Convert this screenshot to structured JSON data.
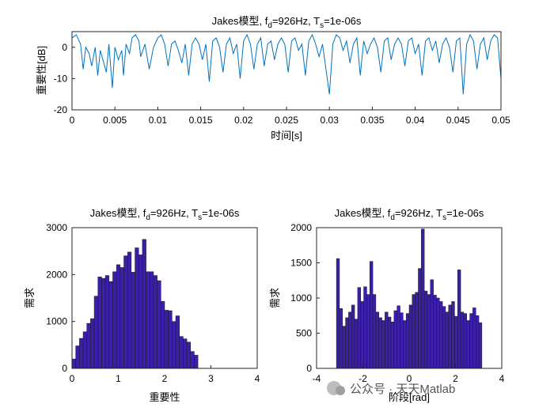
{
  "chart_data": [
    {
      "type": "line",
      "title_main": "Jakes模型, f",
      "title_sub1": "d",
      "title_mid": "=926Hz, T",
      "title_sub2": "s",
      "title_end": "=1e-06s",
      "xlabel": "时间[s]",
      "ylabel": "重要性[dB]",
      "xlim": [
        0,
        0.05
      ],
      "ylim": [
        -20,
        5
      ],
      "xticks": [
        0,
        0.005,
        0.01,
        0.015,
        0.02,
        0.025,
        0.03,
        0.035,
        0.04,
        0.045,
        0.05
      ],
      "xtick_labels": [
        "0",
        "0.005",
        "0.01",
        "0.015",
        "0.02",
        "0.025",
        "0.03",
        "0.035",
        "0.04",
        "0.045",
        "0.05"
      ],
      "yticks": [
        -20,
        -10,
        0
      ],
      "ytick_labels": [
        "-20",
        "-10",
        "0"
      ],
      "grid": false,
      "color": "#0072BD",
      "series": [
        {
          "x": [
            0.0,
            0.0005,
            0.001,
            0.0013,
            0.0016,
            0.002,
            0.0023,
            0.0027,
            0.003,
            0.0033,
            0.0036,
            0.004,
            0.0043,
            0.0047,
            0.005,
            0.0054,
            0.0058,
            0.006,
            0.0063,
            0.0067,
            0.007,
            0.0074,
            0.0078,
            0.008,
            0.0085,
            0.009,
            0.0095,
            0.01,
            0.0104,
            0.0108,
            0.0112,
            0.0116,
            0.012,
            0.0124,
            0.0128,
            0.0132,
            0.0136,
            0.014,
            0.0144,
            0.0148,
            0.0152,
            0.0156,
            0.016,
            0.0164,
            0.0168,
            0.0172,
            0.0176,
            0.018,
            0.0184,
            0.0188,
            0.0192,
            0.0196,
            0.02,
            0.0204,
            0.0208,
            0.0212,
            0.0216,
            0.022,
            0.0224,
            0.0228,
            0.0232,
            0.0236,
            0.024,
            0.0244,
            0.0248,
            0.0252,
            0.0256,
            0.026,
            0.0264,
            0.0268,
            0.0272,
            0.0276,
            0.028,
            0.0284,
            0.0288,
            0.0292,
            0.0296,
            0.03,
            0.0304,
            0.0308,
            0.0312,
            0.0316,
            0.032,
            0.0324,
            0.0328,
            0.0332,
            0.0336,
            0.034,
            0.0344,
            0.0348,
            0.0352,
            0.0356,
            0.036,
            0.0364,
            0.0368,
            0.0372,
            0.0376,
            0.038,
            0.0384,
            0.0388,
            0.0392,
            0.0396,
            0.04,
            0.0404,
            0.0408,
            0.0412,
            0.0416,
            0.042,
            0.0424,
            0.0428,
            0.0432,
            0.0436,
            0.044,
            0.0444,
            0.0448,
            0.0452,
            0.0456,
            0.046,
            0.0464,
            0.0468,
            0.0472,
            0.0476,
            0.048,
            0.0484,
            0.0488,
            0.0492,
            0.0496,
            0.05
          ],
          "y": [
            3,
            4,
            1,
            -7,
            0,
            -2,
            -6,
            0,
            -9,
            -1,
            -4,
            -8,
            1,
            -13,
            0,
            -4,
            -1,
            -9,
            1,
            -2,
            3,
            4,
            2,
            -3,
            1,
            -7,
            0,
            3,
            4,
            1,
            -6,
            1,
            2,
            -1,
            -5,
            1,
            -9,
            1,
            3,
            1,
            -4,
            1,
            -11,
            2,
            3,
            0,
            -8,
            1,
            3,
            -2,
            1,
            -10,
            2,
            4,
            1,
            -7,
            1,
            3,
            -6,
            1,
            2,
            -4,
            1,
            3,
            1,
            -8,
            2,
            3,
            -1,
            1,
            -9,
            2,
            4,
            1,
            -3,
            1,
            -7,
            -15,
            1,
            4,
            3,
            -1,
            2,
            -5,
            1,
            3,
            -9,
            2,
            -2,
            1,
            3,
            0,
            -8,
            2,
            3,
            -4,
            1,
            3,
            1,
            -6,
            2,
            3,
            -2,
            1,
            -9,
            2,
            3,
            -1,
            2,
            -5,
            1,
            3,
            0,
            -8,
            2,
            3,
            -15,
            1,
            4,
            2,
            -7,
            1,
            3,
            -4,
            2,
            4,
            3,
            -10
          ]
        }
      ]
    },
    {
      "type": "bar",
      "title_main": "Jakes模型, f",
      "title_sub1": "d",
      "title_mid": "=926Hz, T",
      "title_sub2": "s",
      "title_end": "=1e-06s",
      "xlabel": "重要性",
      "ylabel": "需求",
      "xlim": [
        0,
        4
      ],
      "ylim": [
        0,
        3000
      ],
      "xticks": [
        0,
        1,
        2,
        3,
        4
      ],
      "xtick_labels": [
        "0",
        "1",
        "2",
        "3",
        "4"
      ],
      "yticks": [
        0,
        1000,
        2000,
        3000
      ],
      "ytick_labels": [
        "0",
        "1000",
        "2000",
        "3000"
      ],
      "grid": false,
      "color": "#3B1FA8",
      "bin_start": 0,
      "bin_width": 0.08,
      "values": [
        200,
        480,
        640,
        780,
        960,
        1060,
        1540,
        1950,
        1920,
        1980,
        1850,
        2060,
        2210,
        2150,
        2400,
        2480,
        2050,
        2570,
        2420,
        2750,
        2060,
        2060,
        1980,
        1870,
        1430,
        1240,
        1230,
        1000,
        1120,
        680,
        630,
        560,
        360,
        280,
        0,
        0,
        0,
        0,
        0,
        0,
        0,
        0,
        0,
        0,
        0,
        0,
        0,
        0
      ]
    },
    {
      "type": "bar",
      "title_main": "Jakes模型, f",
      "title_sub1": "d",
      "title_mid": "=926Hz, T",
      "title_sub2": "s",
      "title_end": "=1e-06s",
      "xlabel": "阶段[rad]",
      "ylabel": "需求",
      "xlim": [
        -4,
        4
      ],
      "ylim": [
        0,
        2000
      ],
      "xticks": [
        -4,
        -2,
        0,
        2,
        4
      ],
      "xtick_labels": [
        "-4",
        "-2",
        "0",
        "2",
        "4"
      ],
      "yticks": [
        0,
        500,
        1000,
        1500,
        2000
      ],
      "ytick_labels": [
        "0",
        "500",
        "1000",
        "1500",
        "2000"
      ],
      "grid": false,
      "color": "#3B1FA8",
      "bin_start": -3.1416,
      "bin_width": 0.1309,
      "values": [
        1560,
        850,
        600,
        720,
        800,
        900,
        700,
        1150,
        950,
        1160,
        1050,
        1520,
        1050,
        800,
        720,
        680,
        800,
        730,
        660,
        820,
        890,
        790,
        680,
        780,
        900,
        1050,
        1080,
        1420,
        1980,
        1100,
        1050,
        1260,
        1040,
        1000,
        950,
        880,
        800,
        900,
        950,
        740,
        1400,
        800,
        780,
        680,
        780,
        860,
        750,
        650
      ]
    }
  ],
  "watermark": "公众号 · 天天Matlab"
}
